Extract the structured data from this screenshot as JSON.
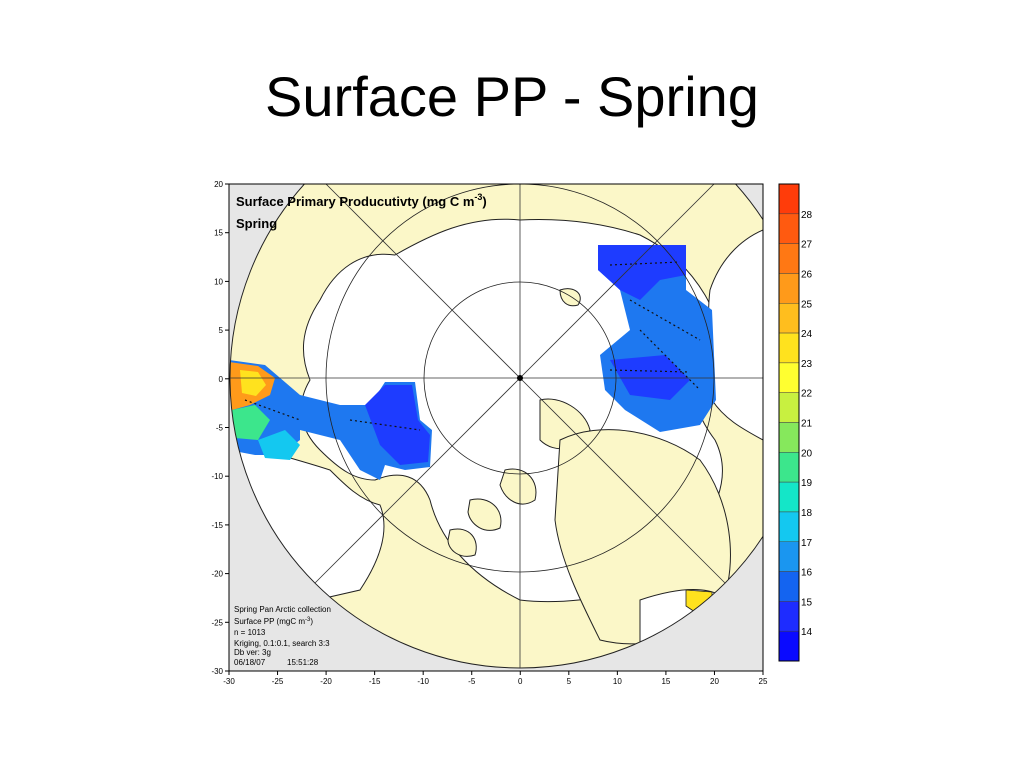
{
  "slide": {
    "title": "Surface PP - Spring"
  },
  "map": {
    "title_line1": "Surface Primary Producutivty (mg C m",
    "title_sup": "-3",
    "title_close": ")",
    "title_line2": "Spring",
    "info": {
      "line1": "Spring  Pan Arctic collection",
      "line2_pre": "Surface PP (mgC m",
      "line2_sup": "-3",
      "line2_post": ")",
      "line3": "n = 1013",
      "line4": "Kriging, 0.1:0.1, search 3:3",
      "line5": "Db ver: 3g",
      "date": "06/18/07",
      "time": "15:51:28"
    },
    "x_ticks": [
      "-30",
      "-25",
      "-20",
      "-15",
      "-10",
      "-5",
      "0",
      "5",
      "10",
      "15",
      "20",
      "25"
    ],
    "y_ticks": [
      "20",
      "15",
      "10",
      "5",
      "0",
      "-5",
      "-10",
      "-15",
      "-20",
      "-25",
      "-30"
    ],
    "colorbar": {
      "labels": [
        "28",
        "27",
        "26",
        "25",
        "24",
        "23",
        "22",
        "21",
        "20",
        "19",
        "18",
        "17",
        "16",
        "15",
        "14"
      ],
      "colors": [
        "#ff3c0a",
        "#ff5a10",
        "#ff7814",
        "#ff9a1a",
        "#ffbe1e",
        "#ffe21e",
        "#ffff30",
        "#c8f040",
        "#86e85c",
        "#3ce68c",
        "#14e6c8",
        "#14c8f0",
        "#1a96f0",
        "#1464f0",
        "#1e2cff",
        "#0a0aff"
      ]
    },
    "colors": {
      "land": "#fbf7c8",
      "ocean": "#ffffff",
      "plot_bg": "#e6e6e6",
      "pp_low": "#1e3cff",
      "pp_mid": "#1e78f0",
      "pp_high": "#ff9a1a"
    }
  }
}
